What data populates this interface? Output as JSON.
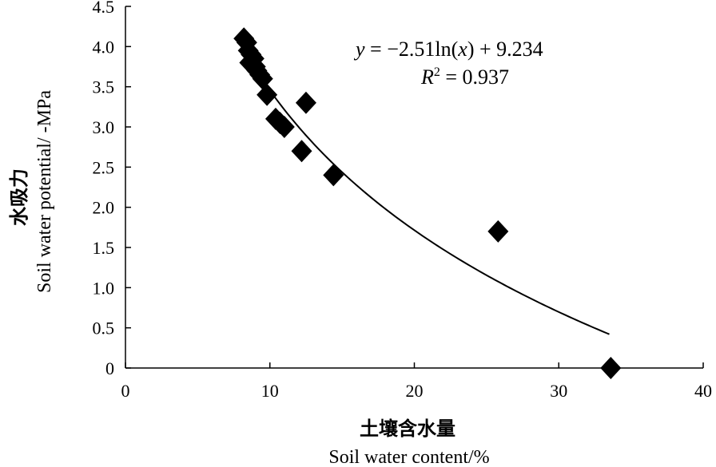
{
  "chart_data": {
    "type": "scatter",
    "title": "",
    "xlabel_cn": "土壤含水量",
    "xlabel": "Soil water content/%",
    "ylabel_cn": "水吸力",
    "ylabel": "Soil  water potential/ -MPa",
    "xlim": [
      0,
      40
    ],
    "ylim": [
      0,
      4.5
    ],
    "x_ticks": [
      "0",
      "10",
      "20",
      "30",
      "40"
    ],
    "y_ticks": [
      "0",
      "0.5",
      "1.0",
      "1.5",
      "2.0",
      "2.5",
      "3.0",
      "3.5",
      "4.0",
      "4.5"
    ],
    "grid": false,
    "marker": "diamond",
    "color": "#000000",
    "points": [
      {
        "x": 8.2,
        "y": 4.1
      },
      {
        "x": 8.4,
        "y": 4.05
      },
      {
        "x": 8.5,
        "y": 3.95
      },
      {
        "x": 8.7,
        "y": 3.9
      },
      {
        "x": 8.9,
        "y": 3.85
      },
      {
        "x": 8.6,
        "y": 3.8
      },
      {
        "x": 9.0,
        "y": 3.75
      },
      {
        "x": 9.1,
        "y": 3.7
      },
      {
        "x": 9.3,
        "y": 3.65
      },
      {
        "x": 9.5,
        "y": 3.6
      },
      {
        "x": 9.8,
        "y": 3.4
      },
      {
        "x": 12.5,
        "y": 3.3
      },
      {
        "x": 10.4,
        "y": 3.1
      },
      {
        "x": 10.7,
        "y": 3.05
      },
      {
        "x": 11.0,
        "y": 3.0
      },
      {
        "x": 12.2,
        "y": 2.7
      },
      {
        "x": 14.4,
        "y": 2.4
      },
      {
        "x": 25.8,
        "y": 1.7
      },
      {
        "x": 33.6,
        "y": 0.0
      }
    ],
    "trendline": {
      "type": "logarithmic",
      "a": -2.51,
      "b": 9.234,
      "x_range": [
        8.5,
        33.5
      ],
      "equation_text": "y = −2.51ln(x) + 9.234",
      "r2_text": "R2 = 0.937",
      "eq_parts": {
        "y": "y",
        "rhs": " = −2.51ln(",
        "xvar": "x",
        "tail": ") + 9.234"
      },
      "r2_parts": {
        "R": "R",
        "sup": "2",
        "rhs": " = 0.937"
      }
    }
  }
}
